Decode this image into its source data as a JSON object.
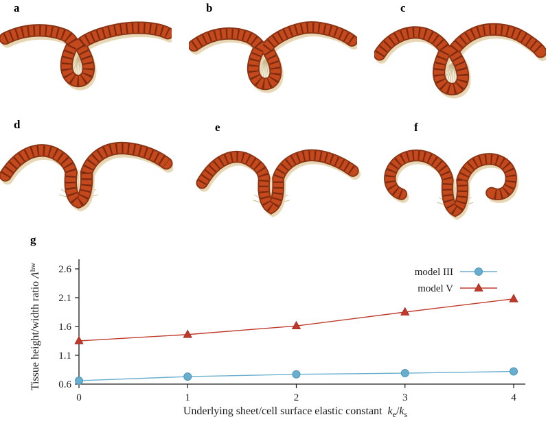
{
  "figure": {
    "panels": [
      {
        "label": "a"
      },
      {
        "label": "b"
      },
      {
        "label": "c"
      },
      {
        "label": "d"
      },
      {
        "label": "e"
      },
      {
        "label": "f"
      },
      {
        "label": "g"
      }
    ],
    "colors": {
      "tissue": "#c4491d",
      "tissue_stripe": "#7e2a10",
      "tissue_outline": "#8a3414",
      "tissue_light": "#e7d7b4",
      "cell_light": "#f6f0df",
      "cell_lines": "#cbbb92"
    }
  },
  "chart_data": {
    "type": "line",
    "x": [
      0,
      1,
      2,
      3,
      4
    ],
    "series": [
      {
        "name": "model III",
        "marker": "circle",
        "color": "#68aecf",
        "edge": "#4d94b8",
        "values": [
          0.66,
          0.73,
          0.77,
          0.79,
          0.82
        ]
      },
      {
        "name": "model V",
        "marker": "triangle",
        "color": "#bf3a2b",
        "edge": "#9c2c1f",
        "values": [
          1.35,
          1.46,
          1.61,
          1.85,
          2.08
        ]
      }
    ],
    "title": "",
    "xlabel_plain": "Underlying sheet/cell surface elastic constant",
    "xvar": {
      "base1": "k",
      "sub1": "e",
      "sep": "/",
      "base2": "k",
      "sub2": "s"
    },
    "ylabel_plain": "Tissue height/width ratio",
    "yvar": {
      "base": "Λ",
      "sup": "hw"
    },
    "xlim": [
      0,
      4
    ],
    "ylim": [
      0.6,
      2.6
    ],
    "xticks": [
      0,
      1,
      2,
      3,
      4
    ],
    "yticks": [
      0.6,
      1.1,
      1.6,
      2.1,
      2.6
    ],
    "grid": false,
    "legend_position": "top-right"
  }
}
